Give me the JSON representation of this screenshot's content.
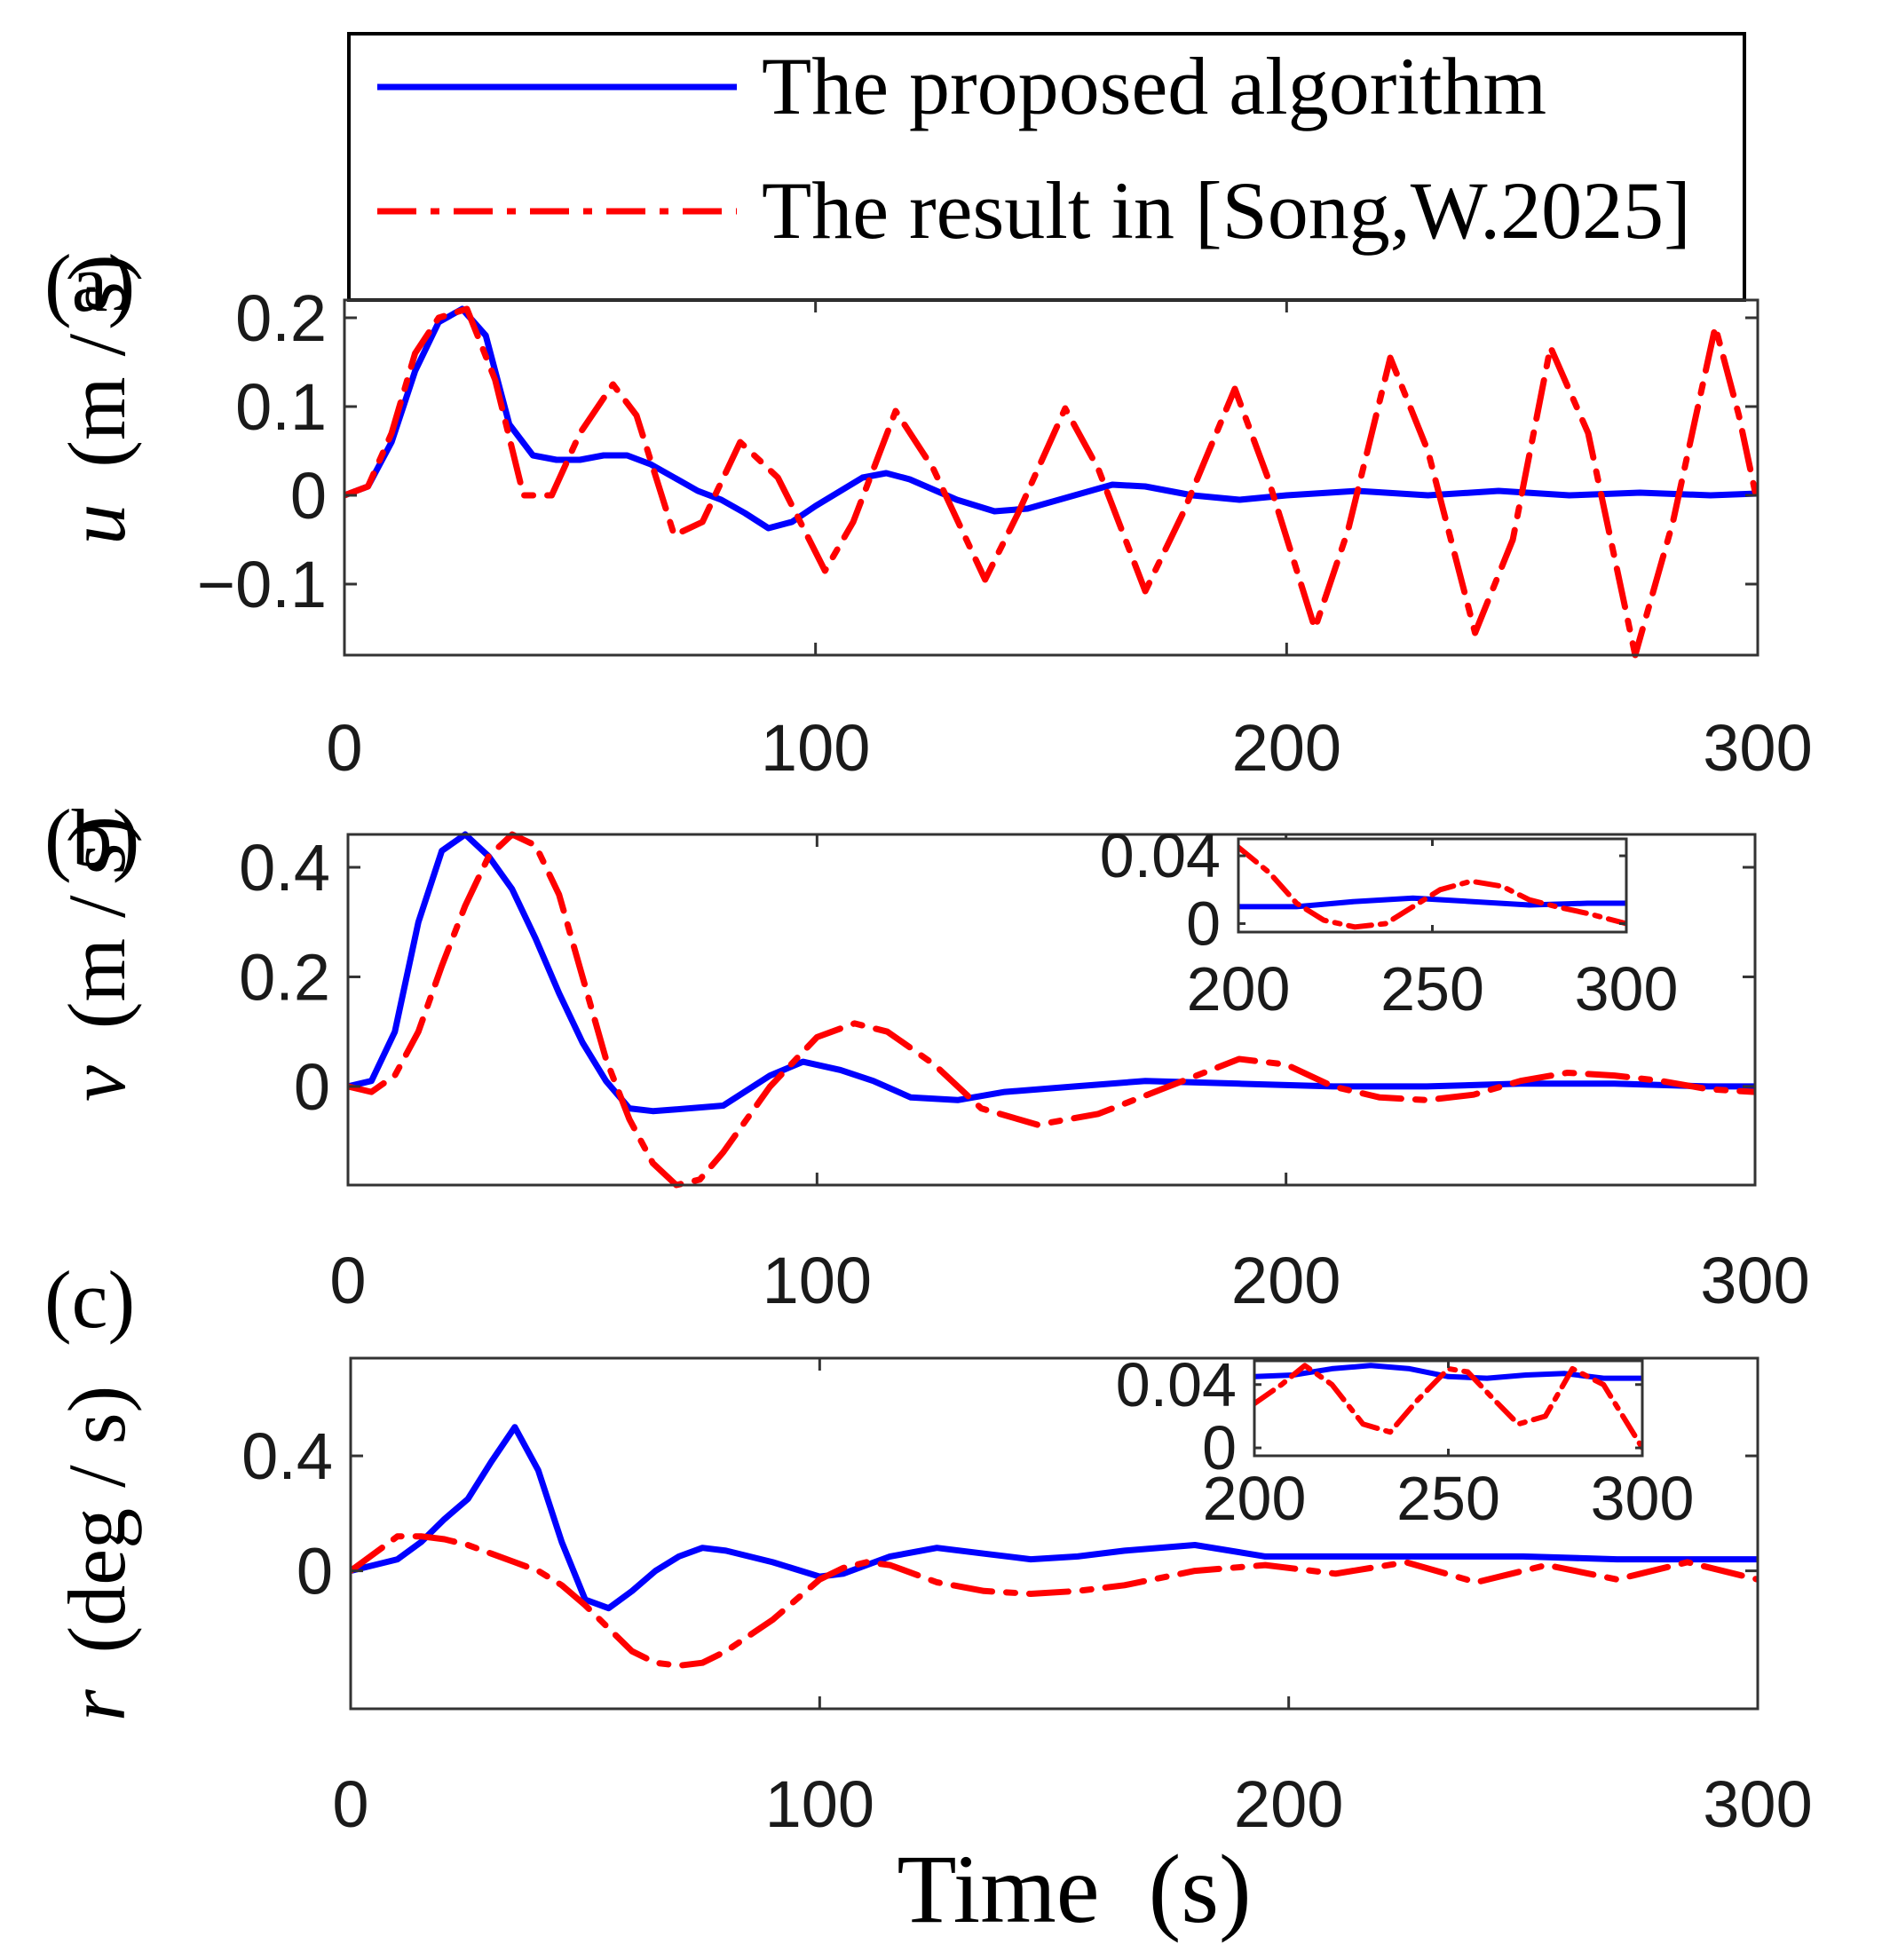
{
  "figure": {
    "xlabel": "Time  (s)",
    "legend": {
      "entries": [
        {
          "label": "The proposed algorithm",
          "color": "#0000ff",
          "style": "solid"
        },
        {
          "label": "The result in [Song,W.2025]",
          "color": "#ff0000",
          "style": "dash-dot"
        }
      ]
    }
  },
  "chart_data": [
    {
      "type": "line",
      "panel": "(a)",
      "ylabel_var": "u",
      "ylabel_unit": "(m / s)",
      "xlim": [
        0,
        300
      ],
      "ylim": [
        -0.18,
        0.22
      ],
      "xticks": [
        0,
        100,
        200,
        300
      ],
      "xtick_labels": [
        "0",
        "100",
        "200",
        "300"
      ],
      "yticks": [
        -0.1,
        0,
        0.1,
        0.2
      ],
      "ytick_labels": [
        "−0.1",
        "0",
        "0.1",
        "0.2"
      ],
      "series": [
        {
          "name": "The proposed algorithm",
          "color": "#0000ff",
          "x": [
            0,
            5,
            10,
            15,
            20,
            25,
            30,
            35,
            40,
            45,
            50,
            55,
            60,
            65,
            70,
            75,
            80,
            85,
            90,
            95,
            100,
            110,
            115,
            120,
            130,
            138,
            145,
            155,
            163,
            170,
            180,
            190,
            200,
            215,
            230,
            245,
            260,
            275,
            290,
            300
          ],
          "y": [
            0,
            0.01,
            0.06,
            0.14,
            0.195,
            0.21,
            0.18,
            0.08,
            0.045,
            0.04,
            0.04,
            0.045,
            0.045,
            0.035,
            0.02,
            0.005,
            -0.005,
            -0.02,
            -0.037,
            -0.03,
            -0.012,
            0.02,
            0.025,
            0.018,
            -0.005,
            -0.018,
            -0.015,
            0.0,
            0.012,
            0.01,
            0.0,
            -0.005,
            0.0,
            0.005,
            0.0,
            0.005,
            0.0,
            0.003,
            0.0,
            0.002
          ]
        },
        {
          "name": "The result in [Song,W.2025]",
          "color": "#ff0000",
          "x": [
            0,
            5,
            10,
            15,
            20,
            26,
            32,
            38,
            44,
            50,
            57,
            62,
            70,
            76,
            84,
            92,
            102,
            108,
            117,
            125,
            136,
            143,
            153,
            160,
            170,
            178,
            189,
            196,
            206,
            213,
            222,
            230,
            240,
            248,
            256,
            264,
            274,
            282,
            291,
            296,
            300
          ],
          "y": [
            0,
            0.01,
            0.07,
            0.16,
            0.2,
            0.21,
            0.13,
            0.0,
            0.0,
            0.07,
            0.125,
            0.09,
            -0.045,
            -0.03,
            0.06,
            0.02,
            -0.085,
            -0.03,
            0.095,
            0.03,
            -0.095,
            -0.02,
            0.098,
            0.03,
            -0.108,
            -0.02,
            0.12,
            0.02,
            -0.15,
            -0.04,
            0.155,
            0.05,
            -0.155,
            -0.05,
            0.167,
            0.07,
            -0.18,
            -0.03,
            0.19,
            0.09,
            -0.01
          ]
        }
      ]
    },
    {
      "type": "line",
      "panel": "(b)",
      "ylabel_var": "v",
      "ylabel_unit": "(m / s)",
      "xlim": [
        0,
        300
      ],
      "ylim": [
        -0.18,
        0.46
      ],
      "xticks": [
        0,
        100,
        200,
        300
      ],
      "xtick_labels": [
        "0",
        "100",
        "200",
        "300"
      ],
      "yticks": [
        0,
        0.2,
        0.4
      ],
      "ytick_labels": [
        "0",
        "0.2",
        "0.4"
      ],
      "series": [
        {
          "name": "The proposed algorithm",
          "color": "#0000ff",
          "x": [
            0,
            5,
            10,
            15,
            20,
            25,
            30,
            35,
            40,
            45,
            50,
            55,
            60,
            65,
            70,
            80,
            90,
            97,
            105,
            112,
            120,
            130,
            140,
            155,
            170,
            190,
            210,
            230,
            250,
            270,
            290,
            300
          ],
          "y": [
            0,
            0.01,
            0.1,
            0.3,
            0.43,
            0.46,
            0.42,
            0.36,
            0.27,
            0.17,
            0.08,
            0.01,
            -0.04,
            -0.045,
            -0.042,
            -0.035,
            0.02,
            0.045,
            0.03,
            0.01,
            -0.02,
            -0.025,
            -0.01,
            0.0,
            0.01,
            0.005,
            0.0,
            0.0,
            0.005,
            0.005,
            0.0,
            0.0
          ]
        },
        {
          "name": "The result in [Song,W.2025]",
          "color": "#ff0000",
          "x": [
            0,
            5,
            10,
            15,
            20,
            25,
            30,
            35,
            40,
            45,
            50,
            55,
            60,
            65,
            70,
            75,
            80,
            90,
            100,
            108,
            115,
            125,
            135,
            147,
            160,
            175,
            190,
            200,
            210,
            220,
            230,
            240,
            250,
            260,
            270,
            280,
            290,
            300
          ],
          "y": [
            0,
            -0.01,
            0.02,
            0.1,
            0.22,
            0.33,
            0.42,
            0.46,
            0.44,
            0.35,
            0.2,
            0.05,
            -0.06,
            -0.14,
            -0.18,
            -0.17,
            -0.12,
            0.0,
            0.09,
            0.115,
            0.1,
            0.04,
            -0.04,
            -0.07,
            -0.05,
            0.0,
            0.05,
            0.04,
            0.0,
            -0.02,
            -0.025,
            -0.015,
            0.01,
            0.025,
            0.02,
            0.01,
            -0.005,
            -0.01
          ]
        }
      ],
      "inset": {
        "xlim": [
          200,
          300
        ],
        "ylim": [
          -0.005,
          0.05
        ],
        "xticks": [
          200,
          250,
          300
        ],
        "xtick_labels": [
          "200",
          "250",
          "300"
        ],
        "yticks": [
          0,
          0.04
        ],
        "ytick_labels": [
          "0",
          "0.04"
        ],
        "series": [
          {
            "name": "The proposed algorithm",
            "color": "#0000ff",
            "x": [
              200,
              215,
              230,
              245,
              260,
              275,
              290,
              300
            ],
            "y": [
              0.01,
              0.01,
              0.013,
              0.015,
              0.013,
              0.011,
              0.012,
              0.012
            ]
          },
          {
            "name": "The result in [Song,W.2025]",
            "color": "#ff0000",
            "x": [
              200,
              208,
              215,
              222,
              230,
              238,
              245,
              252,
              260,
              268,
              275,
              282,
              290,
              300
            ],
            "y": [
              0.045,
              0.03,
              0.012,
              0.002,
              -0.002,
              0.0,
              0.01,
              0.02,
              0.025,
              0.022,
              0.014,
              0.01,
              0.006,
              0.0
            ]
          }
        ]
      }
    },
    {
      "type": "line",
      "panel": "(c)",
      "ylabel_var": "r",
      "ylabel_unit": "(deg / s)",
      "xlim": [
        0,
        300
      ],
      "ylim": [
        -0.48,
        0.74
      ],
      "xticks": [
        0,
        100,
        200,
        300
      ],
      "xtick_labels": [
        "0",
        "100",
        "200",
        "300"
      ],
      "yticks": [
        0,
        0.4
      ],
      "ytick_labels": [
        "0",
        "0.4"
      ],
      "series": [
        {
          "name": "The proposed algorithm",
          "color": "#0000ff",
          "x": [
            0,
            5,
            10,
            15,
            20,
            25,
            30,
            35,
            40,
            45,
            50,
            55,
            60,
            65,
            70,
            75,
            80,
            90,
            100,
            105,
            110,
            115,
            125,
            135,
            145,
            155,
            165,
            180,
            195,
            210,
            230,
            250,
            270,
            300
          ],
          "y": [
            0,
            0.02,
            0.04,
            0.1,
            0.18,
            0.25,
            0.38,
            0.5,
            0.35,
            0.1,
            -0.1,
            -0.13,
            -0.07,
            0.0,
            0.05,
            0.08,
            0.07,
            0.03,
            -0.02,
            -0.01,
            0.02,
            0.05,
            0.08,
            0.06,
            0.04,
            0.05,
            0.07,
            0.09,
            0.05,
            0.05,
            0.05,
            0.05,
            0.04,
            0.04
          ]
        },
        {
          "name": "The result in [Song,W.2025]",
          "color": "#ff0000",
          "x": [
            0,
            5,
            10,
            15,
            20,
            25,
            30,
            35,
            40,
            45,
            50,
            55,
            60,
            65,
            70,
            75,
            80,
            90,
            100,
            105,
            110,
            115,
            125,
            135,
            145,
            155,
            165,
            180,
            195,
            210,
            225,
            240,
            255,
            270,
            285,
            300
          ],
          "y": [
            0,
            0.06,
            0.12,
            0.12,
            0.11,
            0.09,
            0.06,
            0.03,
            0.0,
            -0.05,
            -0.12,
            -0.2,
            -0.28,
            -0.32,
            -0.33,
            -0.32,
            -0.28,
            -0.17,
            -0.03,
            0.01,
            0.03,
            0.02,
            -0.04,
            -0.07,
            -0.08,
            -0.07,
            -0.05,
            0.0,
            0.02,
            -0.01,
            0.03,
            -0.04,
            0.02,
            -0.03,
            0.03,
            -0.03
          ]
        }
      ],
      "inset": {
        "xlim": [
          200,
          300
        ],
        "ylim": [
          -0.005,
          0.055
        ],
        "xticks": [
          200,
          250,
          300
        ],
        "xtick_labels": [
          "200",
          "250",
          "300"
        ],
        "yticks": [
          0,
          0.04
        ],
        "ytick_labels": [
          "0",
          "0.04"
        ],
        "series": [
          {
            "name": "The proposed algorithm",
            "color": "#0000ff",
            "x": [
              200,
              210,
              220,
              230,
              240,
              250,
              260,
              270,
              280,
              290,
              300
            ],
            "y": [
              0.045,
              0.046,
              0.05,
              0.052,
              0.05,
              0.045,
              0.044,
              0.046,
              0.047,
              0.044,
              0.044
            ]
          },
          {
            "name": "The result in [Song,W.2025]",
            "color": "#ff0000",
            "x": [
              200,
              207,
              213,
              220,
              228,
              235,
              242,
              250,
              255,
              262,
              268,
              275,
              282,
              290,
              300
            ],
            "y": [
              0.028,
              0.04,
              0.052,
              0.04,
              0.015,
              0.01,
              0.03,
              0.05,
              0.048,
              0.03,
              0.015,
              0.02,
              0.05,
              0.04,
              0.0
            ]
          }
        ]
      }
    }
  ]
}
